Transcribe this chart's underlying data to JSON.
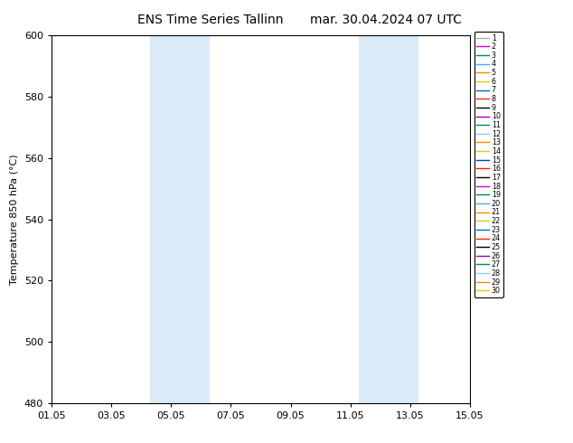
{
  "title_left": "ENS Time Series Tallinn",
  "title_right": "mar. 30.04.2024 07 UTC",
  "ylabel": "Temperature 850 hPa (°C)",
  "ylim": [
    480,
    600
  ],
  "yticks": [
    480,
    500,
    520,
    540,
    560,
    580,
    600
  ],
  "xtick_labels": [
    "01.05",
    "03.05",
    "05.05",
    "07.05",
    "09.05",
    "11.05",
    "13.05",
    "15.05"
  ],
  "xtick_positions_days": [
    0,
    2,
    4,
    6,
    8,
    10,
    12,
    14
  ],
  "xlim": [
    0,
    14
  ],
  "shaded_bands": [
    {
      "xstart_days": 3.29,
      "xend_days": 5.29
    },
    {
      "xstart_days": 10.29,
      "xend_days": 12.29
    }
  ],
  "shaded_color": "#daeaf8",
  "line_colors": [
    "#aaaaaa",
    "#cc00cc",
    "#008866",
    "#44aaff",
    "#ff8800",
    "#ddcc00",
    "#0066cc",
    "#ff2200",
    "#000000",
    "#9900cc",
    "#008866",
    "#88ccff",
    "#ff8800",
    "#ddcc00",
    "#0044bb",
    "#ff2200",
    "#000000",
    "#cc00cc",
    "#008866",
    "#44aaff",
    "#ff8800",
    "#ddcc00",
    "#0066cc",
    "#ff2200",
    "#000000",
    "#9900cc",
    "#008866",
    "#88ccff",
    "#ff8800",
    "#ddcc00"
  ],
  "legend_labels": [
    "1",
    "2",
    "3",
    "4",
    "5",
    "6",
    "7",
    "8",
    "9",
    "10",
    "11",
    "12",
    "13",
    "14",
    "15",
    "16",
    "17",
    "18",
    "19",
    "20",
    "21",
    "22",
    "23",
    "24",
    "25",
    "26",
    "27",
    "28",
    "29",
    "30"
  ],
  "background_color": "#ffffff",
  "plot_bg_color": "#ffffff",
  "title_fontsize": 10,
  "axis_label_fontsize": 8,
  "tick_fontsize": 8,
  "legend_fontsize": 5.8,
  "spine_color": "#000000",
  "tick_color": "#000000"
}
